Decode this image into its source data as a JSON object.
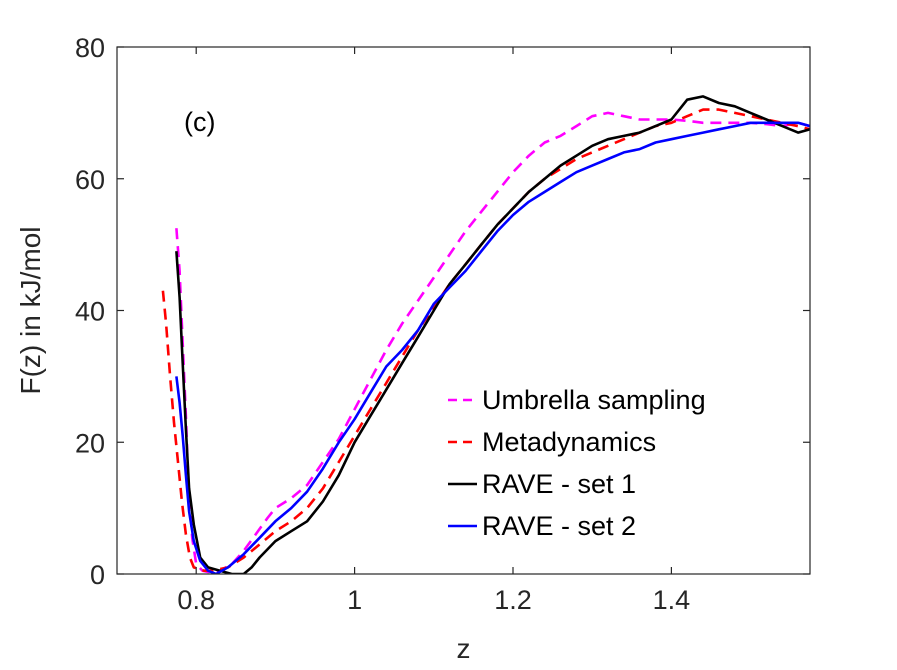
{
  "chart_data": {
    "type": "line",
    "panel_label": "(c)",
    "xlabel": "z",
    "ylabel": "F(z) in kJ/mol",
    "xlim": [
      0.7,
      1.575
    ],
    "ylim": [
      0,
      80
    ],
    "xticks": [
      0.8,
      1,
      1.2,
      1.4
    ],
    "xtick_labels": [
      "0.8",
      "1",
      "1.2",
      "1.4"
    ],
    "yticks": [
      0,
      20,
      40,
      60,
      80
    ],
    "ytick_labels": [
      "0",
      "20",
      "40",
      "60",
      "80"
    ],
    "grid": false,
    "legend_position": "bottom-right",
    "series": [
      {
        "name": "Umbrella sampling",
        "color": "#ff00ff",
        "dash": "dashed",
        "points": [
          [
            0.775,
            52.5
          ],
          [
            0.779,
            46
          ],
          [
            0.783,
            35
          ],
          [
            0.787,
            24
          ],
          [
            0.79,
            14
          ],
          [
            0.795,
            5.5
          ],
          [
            0.8,
            1.5
          ],
          [
            0.808,
            0.5
          ],
          [
            0.815,
            0.3
          ],
          [
            0.83,
            0.5
          ],
          [
            0.845,
            1.5
          ],
          [
            0.86,
            3.5
          ],
          [
            0.875,
            6
          ],
          [
            0.89,
            8.5
          ],
          [
            0.9,
            10
          ],
          [
            0.92,
            11.5
          ],
          [
            0.94,
            13.5
          ],
          [
            0.96,
            17
          ],
          [
            0.98,
            20.5
          ],
          [
            1.0,
            25
          ],
          [
            1.02,
            29.5
          ],
          [
            1.04,
            34
          ],
          [
            1.06,
            38
          ],
          [
            1.08,
            41.5
          ],
          [
            1.1,
            45
          ],
          [
            1.12,
            48.5
          ],
          [
            1.14,
            52
          ],
          [
            1.16,
            55
          ],
          [
            1.18,
            58
          ],
          [
            1.2,
            61
          ],
          [
            1.22,
            63.5
          ],
          [
            1.24,
            65.5
          ],
          [
            1.26,
            66.5
          ],
          [
            1.28,
            68
          ],
          [
            1.3,
            69.5
          ],
          [
            1.32,
            70
          ],
          [
            1.34,
            69.5
          ],
          [
            1.36,
            69
          ],
          [
            1.38,
            69
          ],
          [
            1.4,
            69
          ],
          [
            1.42,
            68.8
          ],
          [
            1.44,
            68.5
          ],
          [
            1.46,
            68.5
          ],
          [
            1.48,
            68.5
          ],
          [
            1.5,
            68.5
          ],
          [
            1.52,
            68.3
          ],
          [
            1.54,
            68
          ],
          [
            1.56,
            68.5
          ],
          [
            1.575,
            68
          ]
        ]
      },
      {
        "name": "Metadynamics",
        "color": "#ff0000",
        "dash": "dashed",
        "points": [
          [
            0.758,
            43
          ],
          [
            0.762,
            38
          ],
          [
            0.767,
            30
          ],
          [
            0.772,
            23
          ],
          [
            0.777,
            17
          ],
          [
            0.782,
            11
          ],
          [
            0.787,
            6
          ],
          [
            0.792,
            2.5
          ],
          [
            0.797,
            1
          ],
          [
            0.81,
            0.5
          ],
          [
            0.82,
            0.5
          ],
          [
            0.84,
            1
          ],
          [
            0.86,
            2.5
          ],
          [
            0.88,
            4.5
          ],
          [
            0.9,
            6.5
          ],
          [
            0.92,
            8
          ],
          [
            0.94,
            10
          ],
          [
            0.96,
            13
          ],
          [
            0.98,
            17
          ],
          [
            1.0,
            21
          ],
          [
            1.02,
            25
          ],
          [
            1.04,
            29
          ],
          [
            1.06,
            33
          ],
          [
            1.08,
            37
          ],
          [
            1.1,
            40.5
          ],
          [
            1.12,
            44
          ],
          [
            1.14,
            47
          ],
          [
            1.16,
            50
          ],
          [
            1.18,
            53
          ],
          [
            1.2,
            55.5
          ],
          [
            1.22,
            58
          ],
          [
            1.24,
            60
          ],
          [
            1.26,
            61.5
          ],
          [
            1.28,
            63
          ],
          [
            1.3,
            64
          ],
          [
            1.32,
            65
          ],
          [
            1.34,
            66
          ],
          [
            1.36,
            67
          ],
          [
            1.38,
            68
          ],
          [
            1.4,
            68.5
          ],
          [
            1.42,
            69.5
          ],
          [
            1.44,
            70.5
          ],
          [
            1.46,
            70.5
          ],
          [
            1.48,
            70
          ],
          [
            1.5,
            69.5
          ],
          [
            1.52,
            69
          ],
          [
            1.54,
            68.5
          ],
          [
            1.56,
            68
          ],
          [
            1.575,
            67.5
          ]
        ]
      },
      {
        "name": "RAVE - set 1",
        "color": "#000000",
        "dash": "solid",
        "points": [
          [
            0.775,
            49
          ],
          [
            0.779,
            42
          ],
          [
            0.783,
            32
          ],
          [
            0.787,
            22
          ],
          [
            0.791,
            13
          ],
          [
            0.797,
            7.5
          ],
          [
            0.805,
            2.5
          ],
          [
            0.815,
            1
          ],
          [
            0.83,
            0.5
          ],
          [
            0.845,
            0
          ],
          [
            0.86,
            0
          ],
          [
            0.87,
            1
          ],
          [
            0.88,
            2.5
          ],
          [
            0.9,
            5
          ],
          [
            0.92,
            6.5
          ],
          [
            0.94,
            8
          ],
          [
            0.96,
            11
          ],
          [
            0.98,
            15
          ],
          [
            1.0,
            20
          ],
          [
            1.02,
            24
          ],
          [
            1.04,
            28
          ],
          [
            1.06,
            32
          ],
          [
            1.08,
            36
          ],
          [
            1.1,
            40
          ],
          [
            1.12,
            44
          ],
          [
            1.14,
            47
          ],
          [
            1.16,
            50
          ],
          [
            1.18,
            53
          ],
          [
            1.2,
            55.5
          ],
          [
            1.22,
            58
          ],
          [
            1.24,
            60
          ],
          [
            1.26,
            62
          ],
          [
            1.28,
            63.5
          ],
          [
            1.3,
            65
          ],
          [
            1.32,
            66
          ],
          [
            1.34,
            66.5
          ],
          [
            1.36,
            67
          ],
          [
            1.38,
            68
          ],
          [
            1.4,
            69
          ],
          [
            1.42,
            72
          ],
          [
            1.44,
            72.5
          ],
          [
            1.46,
            71.5
          ],
          [
            1.48,
            71
          ],
          [
            1.5,
            70
          ],
          [
            1.52,
            69
          ],
          [
            1.54,
            68
          ],
          [
            1.56,
            67
          ],
          [
            1.575,
            67.5
          ]
        ]
      },
      {
        "name": "RAVE - set 2",
        "color": "#0000ff",
        "dash": "solid",
        "points": [
          [
            0.775,
            30
          ],
          [
            0.779,
            26
          ],
          [
            0.783,
            21
          ],
          [
            0.787,
            15
          ],
          [
            0.791,
            9.5
          ],
          [
            0.797,
            5
          ],
          [
            0.805,
            2
          ],
          [
            0.815,
            0.5
          ],
          [
            0.825,
            0
          ],
          [
            0.84,
            1
          ],
          [
            0.86,
            3
          ],
          [
            0.88,
            5.5
          ],
          [
            0.9,
            8
          ],
          [
            0.92,
            10
          ],
          [
            0.94,
            12.5
          ],
          [
            0.96,
            16
          ],
          [
            0.98,
            20
          ],
          [
            1.0,
            23.5
          ],
          [
            1.02,
            27.5
          ],
          [
            1.04,
            31.5
          ],
          [
            1.06,
            34
          ],
          [
            1.08,
            37
          ],
          [
            1.1,
            41
          ],
          [
            1.12,
            43.5
          ],
          [
            1.14,
            46
          ],
          [
            1.16,
            49
          ],
          [
            1.18,
            52
          ],
          [
            1.2,
            54.5
          ],
          [
            1.22,
            56.5
          ],
          [
            1.24,
            58
          ],
          [
            1.26,
            59.5
          ],
          [
            1.28,
            61
          ],
          [
            1.3,
            62
          ],
          [
            1.32,
            63
          ],
          [
            1.34,
            64
          ],
          [
            1.36,
            64.5
          ],
          [
            1.38,
            65.5
          ],
          [
            1.4,
            66
          ],
          [
            1.42,
            66.5
          ],
          [
            1.44,
            67
          ],
          [
            1.46,
            67.5
          ],
          [
            1.48,
            68
          ],
          [
            1.5,
            68.5
          ],
          [
            1.52,
            68.5
          ],
          [
            1.54,
            68.5
          ],
          [
            1.56,
            68.5
          ],
          [
            1.575,
            68
          ]
        ]
      }
    ]
  }
}
